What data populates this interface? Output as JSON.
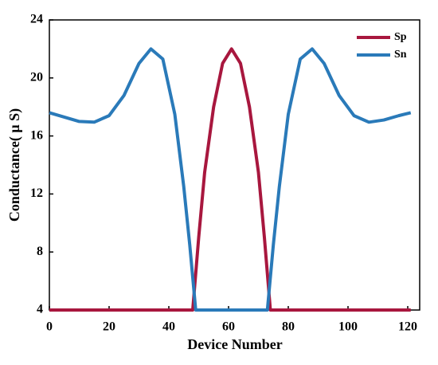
{
  "chart_data": {
    "type": "line",
    "xlabel": "Device Number",
    "ylabel": "Conductance( μ S)",
    "series": [
      {
        "name": "Sp",
        "color": "#a8173e",
        "x": [
          0,
          48,
          50,
          52,
          55,
          58,
          61,
          64,
          67,
          70,
          72,
          74,
          121
        ],
        "values": [
          4,
          4,
          9,
          13.5,
          18,
          21,
          22,
          21,
          18,
          13.5,
          9,
          4,
          4
        ]
      },
      {
        "name": "Sn",
        "color": "#2a7ab9",
        "x": [
          0,
          5,
          10,
          15,
          20,
          25,
          30,
          34,
          38,
          42,
          45,
          47,
          49,
          73,
          75,
          77,
          80,
          84,
          88,
          92,
          97,
          102,
          107,
          112,
          117,
          121
        ],
        "values": [
          17.6,
          17.3,
          17.0,
          16.95,
          17.4,
          18.8,
          21.0,
          22.0,
          21.3,
          17.5,
          12.5,
          8.5,
          4,
          4,
          8.5,
          12.5,
          17.5,
          21.3,
          22,
          21,
          18.8,
          17.4,
          16.95,
          17.1,
          17.4,
          17.6
        ]
      }
    ],
    "xlim": [
      0,
      124
    ],
    "xticks": [
      0,
      20,
      40,
      60,
      80,
      100,
      120
    ],
    "ylim": [
      4,
      24
    ],
    "yticks": [
      4,
      8,
      12,
      16,
      20,
      24
    ],
    "legend": "upper right"
  }
}
